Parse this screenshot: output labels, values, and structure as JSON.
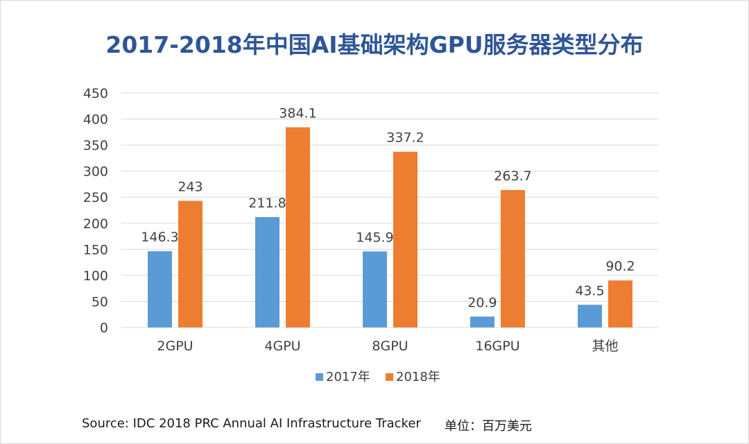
{
  "colors": {
    "series_2017": "#5b9bd5",
    "series_2018": "#ed7d31",
    "title": "#2e5597",
    "grid": "#d9d9d9"
  },
  "chart_data": {
    "type": "bar",
    "title": "2017-2018年中国AI基础架构GPU服务器类型分布",
    "categories": [
      "2GPU",
      "4GPU",
      "8GPU",
      "16GPU",
      "其他"
    ],
    "series": [
      {
        "name": "2017年",
        "values": [
          146.3,
          211.8,
          145.9,
          20.9,
          43.5
        ],
        "labels": [
          "146.3",
          "211.8",
          "145.9",
          "20.9",
          "43.5"
        ]
      },
      {
        "name": "2018年",
        "values": [
          243,
          384.1,
          337.2,
          263.7,
          90.2
        ],
        "labels": [
          "243",
          "384.1",
          "337.2",
          "263.7",
          "90.2"
        ]
      }
    ],
    "ylim": [
      0,
      450
    ],
    "yticks": [
      "0",
      "50",
      "100",
      "150",
      "200",
      "250",
      "300",
      "350",
      "400",
      "450"
    ],
    "grid": true,
    "legend_position": "bottom"
  },
  "footer": {
    "source": "Source: IDC 2018 PRC Annual AI Infrastructure Tracker",
    "unit": "单位：百万美元"
  }
}
